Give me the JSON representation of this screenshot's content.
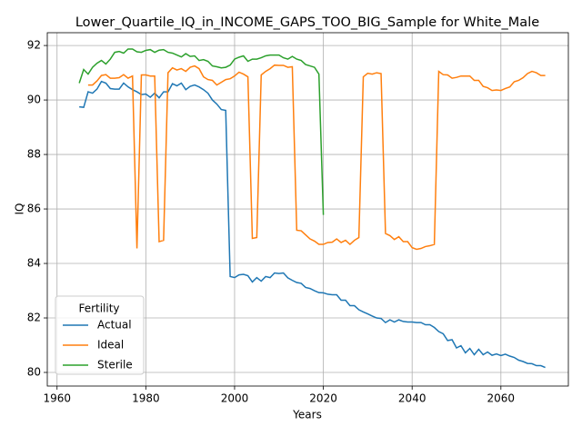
{
  "chart_data": {
    "type": "line",
    "title": "Lower_Quartile_IQ_in_INCOME_GAPS_TOO_BIG_Sample for White_Male",
    "x_label": "Years",
    "y_label": "IQ",
    "x": [
      1965,
      1966,
      1967,
      1968,
      1969,
      1970,
      1971,
      1972,
      1973,
      1974,
      1975,
      1976,
      1977,
      1978,
      1979,
      1980,
      1981,
      1982,
      1983,
      1984,
      1985,
      1986,
      1987,
      1988,
      1989,
      1990,
      1991,
      1992,
      1993,
      1994,
      1995,
      1996,
      1997,
      1998,
      1999,
      2000,
      2001,
      2002,
      2003,
      2004,
      2005,
      2006,
      2007,
      2008,
      2009,
      2010,
      2011,
      2012,
      2013,
      2014,
      2015,
      2016,
      2017,
      2018,
      2019,
      2020,
      2021,
      2022,
      2023,
      2024,
      2025,
      2026,
      2027,
      2028,
      2029,
      2030,
      2031,
      2032,
      2033,
      2034,
      2035,
      2036,
      2037,
      2038,
      2039,
      2040,
      2041,
      2042,
      2043,
      2044,
      2045,
      2046,
      2047,
      2048,
      2049,
      2050,
      2051,
      2052,
      2053,
      2054,
      2055,
      2056,
      2057,
      2058,
      2059,
      2060,
      2061,
      2062,
      2063,
      2064,
      2065,
      2066,
      2067,
      2068,
      2069,
      2070
    ],
    "series": [
      {
        "name": "Actual",
        "color": "#1f77b4",
        "values": [
          89.75,
          89.73,
          90.3,
          90.25,
          90.4,
          90.68,
          90.62,
          90.42,
          90.4,
          90.4,
          90.62,
          90.48,
          90.38,
          90.3,
          90.2,
          90.22,
          90.1,
          90.25,
          90.08,
          90.3,
          90.3,
          90.6,
          90.52,
          90.62,
          90.38,
          90.5,
          90.55,
          90.48,
          90.38,
          90.25,
          90.0,
          89.85,
          89.65,
          89.62,
          83.52,
          83.48,
          83.58,
          83.6,
          83.55,
          83.32,
          83.48,
          83.35,
          83.52,
          83.48,
          83.65,
          83.63,
          83.65,
          83.47,
          83.38,
          83.3,
          83.27,
          83.12,
          83.08,
          83.0,
          82.93,
          82.92,
          82.87,
          82.85,
          82.85,
          82.65,
          82.65,
          82.45,
          82.45,
          82.3,
          82.22,
          82.15,
          82.07,
          82.0,
          81.98,
          81.83,
          81.93,
          81.85,
          81.93,
          81.87,
          81.85,
          81.85,
          81.83,
          81.83,
          81.75,
          81.75,
          81.65,
          81.5,
          81.42,
          81.17,
          81.2,
          80.9,
          80.98,
          80.72,
          80.88,
          80.65,
          80.85,
          80.65,
          80.75,
          80.63,
          80.68,
          80.62,
          80.67,
          80.6,
          80.55,
          80.45,
          80.4,
          80.33,
          80.32,
          80.25,
          80.25,
          80.18
        ]
      },
      {
        "name": "Ideal",
        "color": "#ff7f0e",
        "values": [
          null,
          null,
          90.55,
          90.55,
          90.7,
          90.9,
          90.93,
          90.8,
          90.8,
          90.82,
          90.93,
          90.8,
          90.88,
          84.55,
          90.92,
          90.92,
          90.88,
          90.88,
          84.8,
          84.85,
          91.0,
          91.18,
          91.1,
          91.15,
          91.05,
          91.2,
          91.25,
          91.15,
          90.85,
          90.75,
          90.72,
          90.55,
          90.65,
          90.75,
          90.78,
          90.88,
          91.02,
          90.95,
          90.85,
          84.92,
          84.95,
          90.92,
          91.05,
          91.15,
          91.28,
          91.27,
          91.27,
          91.2,
          91.22,
          85.22,
          85.2,
          85.05,
          84.9,
          84.82,
          84.7,
          84.7,
          84.77,
          84.78,
          84.9,
          84.77,
          84.85,
          84.7,
          84.85,
          84.95,
          90.85,
          90.98,
          90.95,
          91.0,
          90.97,
          85.1,
          85.02,
          84.88,
          84.98,
          84.8,
          84.8,
          84.58,
          84.52,
          84.55,
          84.62,
          84.65,
          84.7,
          91.05,
          90.93,
          90.92,
          90.8,
          90.83,
          90.88,
          90.88,
          90.88,
          90.72,
          90.72,
          90.5,
          90.45,
          90.35,
          90.37,
          90.35,
          90.42,
          90.48,
          90.67,
          90.72,
          90.82,
          90.97,
          91.05,
          91.0,
          90.9,
          90.9
        ]
      },
      {
        "name": "Sterile",
        "color": "#2ca02c",
        "values": [
          90.62,
          91.12,
          90.95,
          91.2,
          91.35,
          91.45,
          91.32,
          91.5,
          91.75,
          91.78,
          91.72,
          91.87,
          91.87,
          91.77,
          91.75,
          91.82,
          91.85,
          91.75,
          91.83,
          91.85,
          91.75,
          91.72,
          91.65,
          91.58,
          91.7,
          91.6,
          91.62,
          91.45,
          91.48,
          91.42,
          91.25,
          91.22,
          91.18,
          91.2,
          91.28,
          91.5,
          91.57,
          91.62,
          91.42,
          91.5,
          91.5,
          91.55,
          91.62,
          91.65,
          91.65,
          91.65,
          91.55,
          91.5,
          91.6,
          91.5,
          91.45,
          91.3,
          91.25,
          91.2,
          90.95,
          85.78,
          null,
          null,
          null,
          null,
          null,
          null,
          null,
          null,
          null,
          null,
          null,
          null,
          null,
          null,
          null,
          null,
          null,
          null,
          null,
          null,
          null,
          null,
          null,
          null,
          null,
          null,
          null,
          null,
          null,
          null,
          null,
          null,
          null,
          null,
          null,
          null,
          null,
          null,
          null,
          null,
          null,
          null,
          null,
          null,
          null,
          null,
          null,
          null,
          null,
          null
        ]
      }
    ],
    "xlim": [
      1957.8,
      2075.2
    ],
    "ylim": [
      79.5,
      92.47
    ],
    "xticks": [
      1960,
      1980,
      2000,
      2020,
      2040,
      2060
    ],
    "yticks": [
      80,
      82,
      84,
      86,
      88,
      90,
      92
    ],
    "grid": true,
    "legend_title": "Fertility",
    "legend_position": "lower left"
  }
}
